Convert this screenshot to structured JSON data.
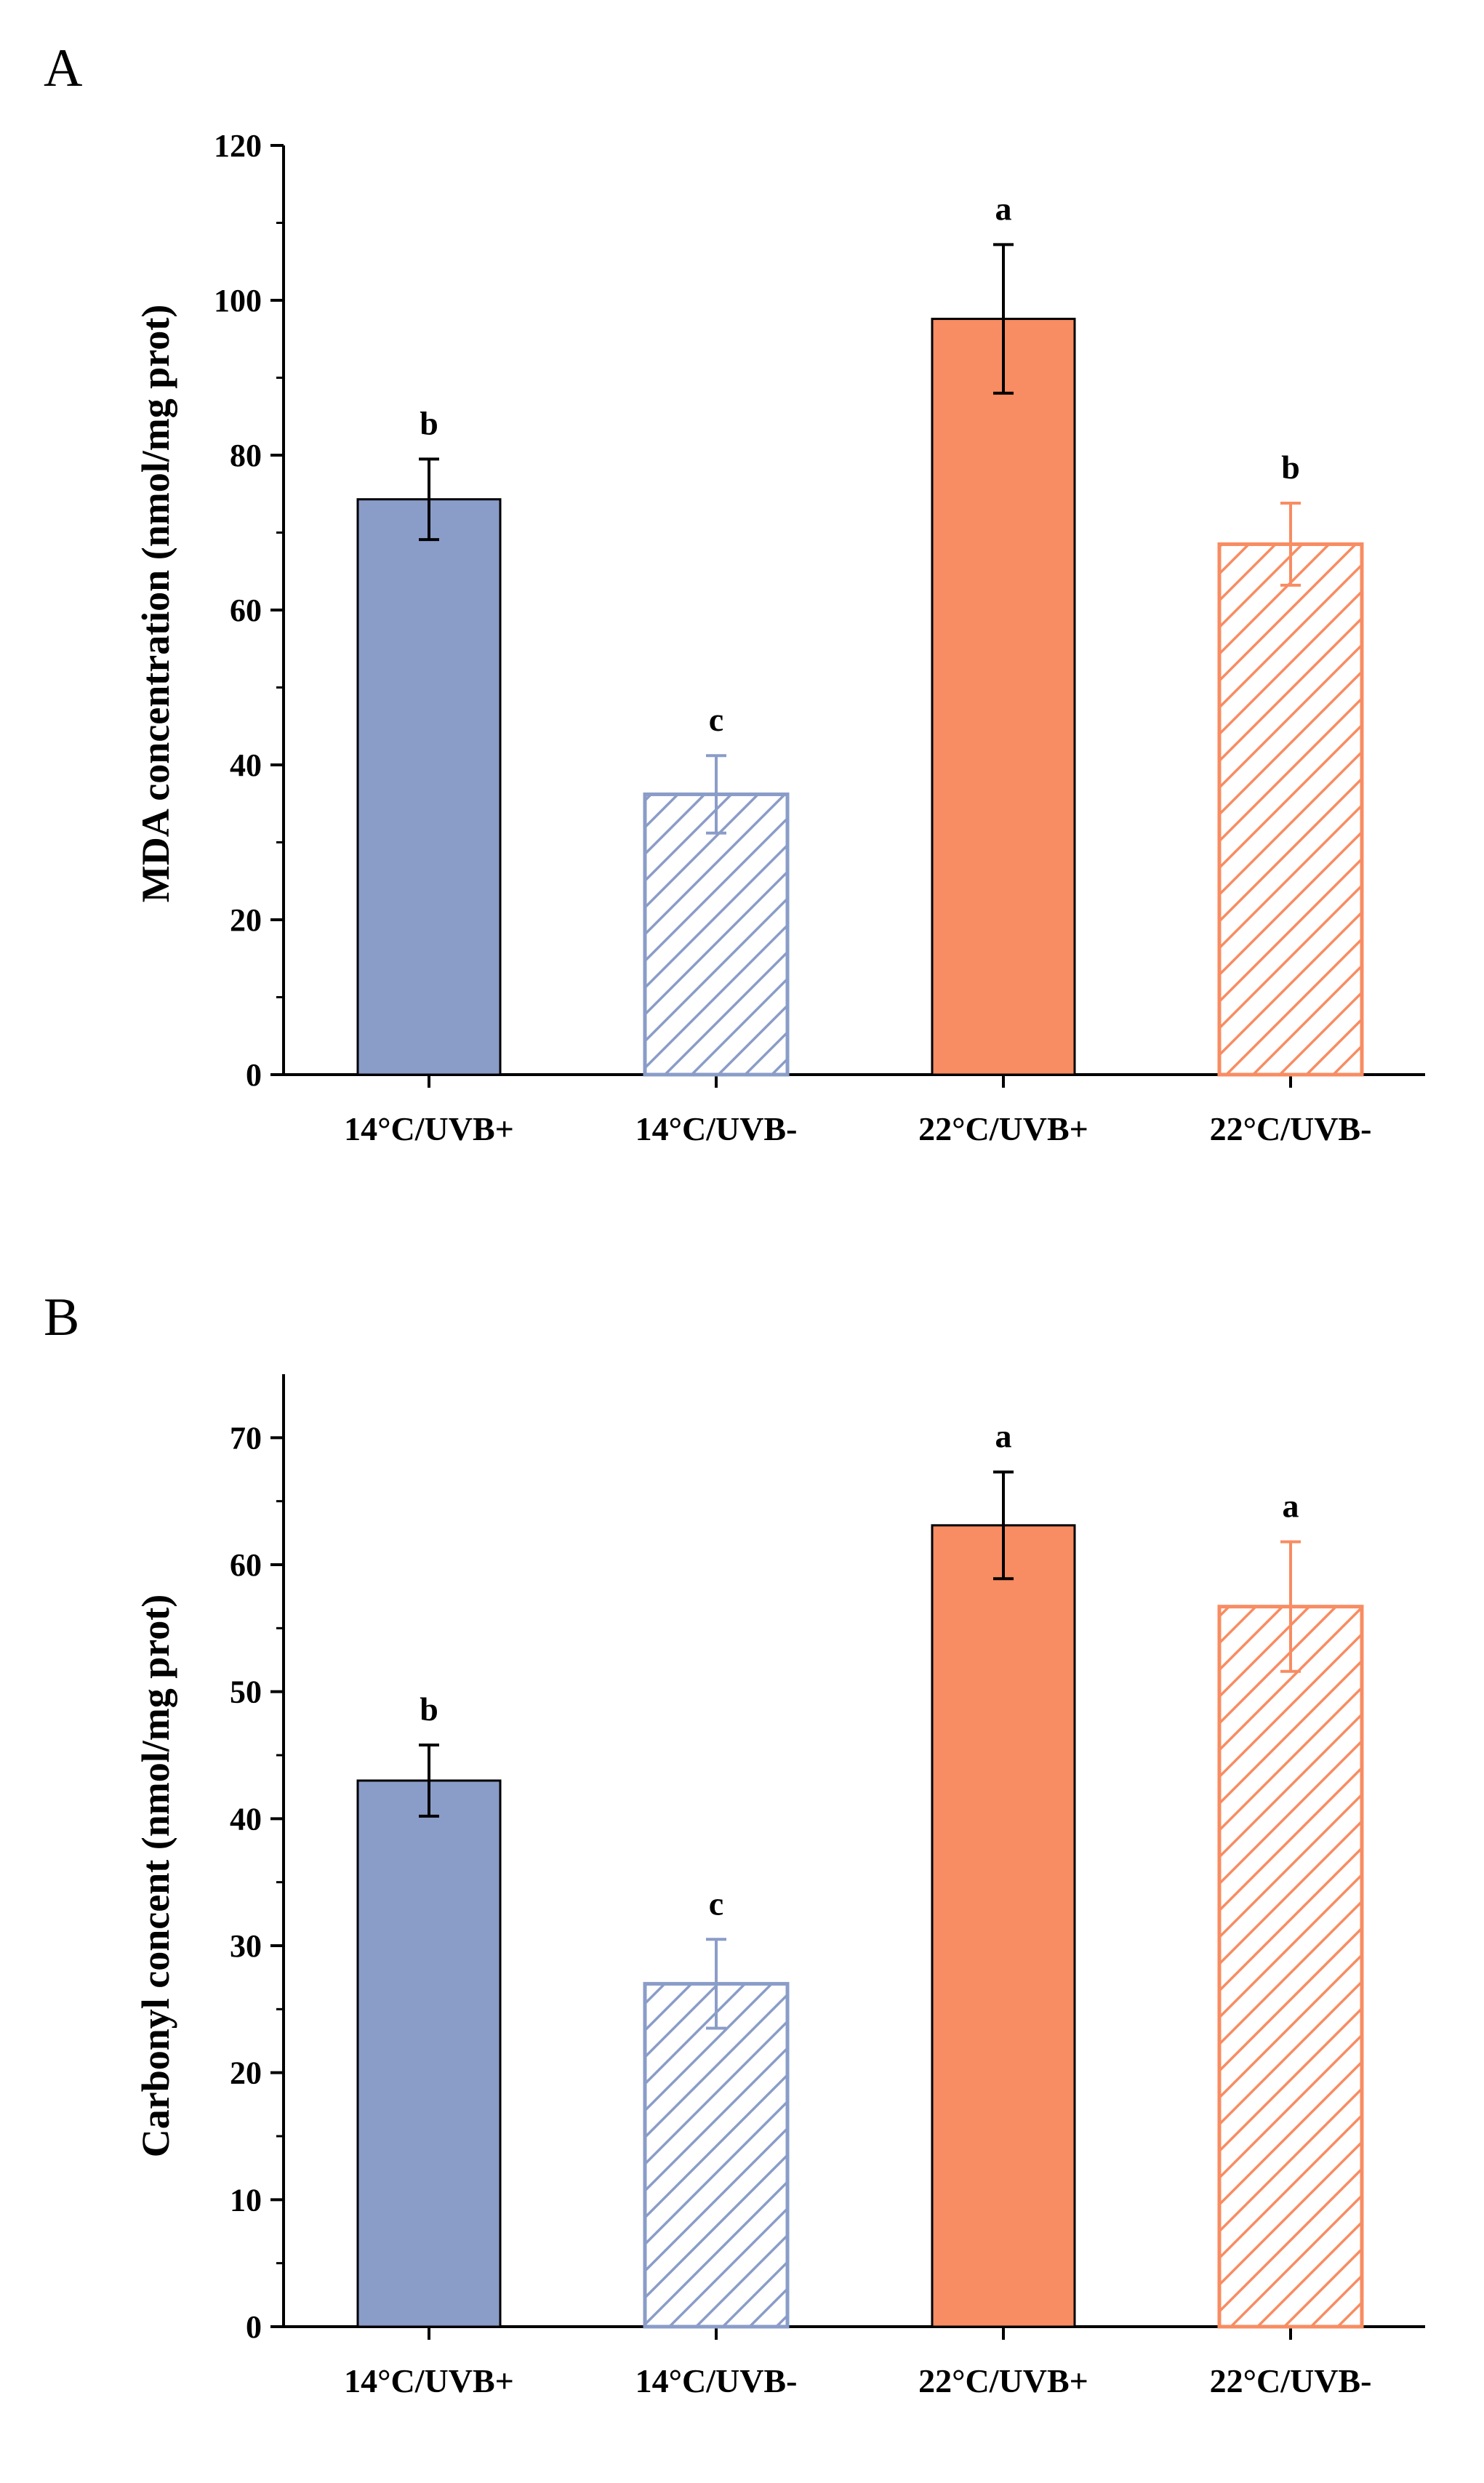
{
  "colors": {
    "blue": "#8a9cc8",
    "orange": "#f88c62",
    "blue_hatch": "#8a9cc8",
    "orange_hatch": "#f88c62",
    "axis": "#000000"
  },
  "chart_data": [
    {
      "type": "bar",
      "panel_label": "A",
      "categories": [
        "14°C/UVB+",
        "14°C/UVB-",
        "22°C/UVB+",
        "22°C/UVB-"
      ],
      "values": [
        74.3,
        36.2,
        97.6,
        68.5
      ],
      "errors": [
        5.2,
        5.0,
        9.6,
        5.3
      ],
      "significance": [
        "b",
        "c",
        "a",
        "b"
      ],
      "fills": [
        "solid",
        "hatched",
        "solid",
        "hatched"
      ],
      "color_keys": [
        "blue",
        "blue",
        "orange",
        "orange"
      ],
      "title": "",
      "xlabel": "",
      "ylabel": "MDA concentration (nmol/mg prot)",
      "ylim": [
        0,
        120
      ],
      "yticks": [
        0,
        20,
        40,
        60,
        80,
        100,
        120
      ],
      "grid": false
    },
    {
      "type": "bar",
      "panel_label": "B",
      "categories": [
        "14°C/UVB+",
        "14°C/UVB-",
        "22°C/UVB+",
        "22°C/UVB-"
      ],
      "values": [
        43.0,
        27.0,
        63.1,
        56.7
      ],
      "errors": [
        2.8,
        3.5,
        4.2,
        5.1
      ],
      "significance": [
        "b",
        "c",
        "a",
        "a"
      ],
      "fills": [
        "solid",
        "hatched",
        "solid",
        "hatched"
      ],
      "color_keys": [
        "blue",
        "blue",
        "orange",
        "orange"
      ],
      "title": "",
      "xlabel": "",
      "ylabel": "Carbonyl concent (nmol/mg prot)",
      "ylim": [
        0,
        75
      ],
      "yticks": [
        0,
        10,
        20,
        30,
        40,
        50,
        60,
        70
      ],
      "grid": false
    }
  ]
}
